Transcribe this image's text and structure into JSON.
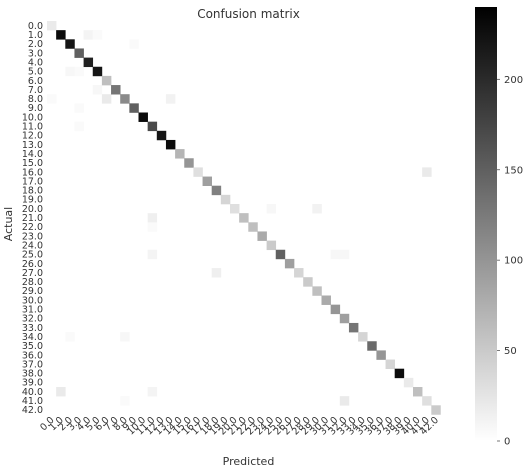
{
  "chart_data": {
    "type": "heatmap",
    "title": "Confusion matrix",
    "xlabel": "Predicted",
    "ylabel": "Actual",
    "colormap": "Greys",
    "colormap_endpoints": [
      "#ffffff",
      "#000000"
    ],
    "vmin": 0,
    "vmax": 240,
    "colorbar_ticks": [
      0,
      50,
      100,
      150,
      200
    ],
    "x_tick_labels": [
      "0.0",
      "1.0",
      "2.0",
      "3.0",
      "4.0",
      "5.0",
      "6.0",
      "7.0",
      "8.0",
      "9.0",
      "10.0",
      "11.0",
      "12.0",
      "13.0",
      "14.0",
      "15.0",
      "16.0",
      "17.0",
      "18.0",
      "19.0",
      "20.0",
      "21.0",
      "22.0",
      "23.0",
      "24.0",
      "25.0",
      "26.0",
      "27.0",
      "28.0",
      "29.0",
      "30.0",
      "31.0",
      "32.0",
      "33.0",
      "34.0",
      "35.0",
      "36.0",
      "37.0",
      "38.0",
      "39.0",
      "40.0",
      "41.0",
      "42.0"
    ],
    "y_tick_labels": [
      "0.0",
      "1.0",
      "2.0",
      "3.0",
      "4.0",
      "5.0",
      "6.0",
      "7.0",
      "8.0",
      "9.0",
      "10.0",
      "11.0",
      "12.0",
      "13.0",
      "14.0",
      "15.0",
      "16.0",
      "17.0",
      "18.0",
      "19.0",
      "20.0",
      "21.0",
      "22.0",
      "23.0",
      "24.0",
      "25.0",
      "26.0",
      "27.0",
      "28.0",
      "29.0",
      "30.0",
      "31.0",
      "32.0",
      "33.0",
      "34.0",
      "35.0",
      "36.0",
      "37.0",
      "38.0",
      "39.0",
      "40.0",
      "41.0",
      "42.0"
    ],
    "diagonal": [
      20,
      230,
      220,
      150,
      210,
      220,
      60,
      130,
      110,
      150,
      230,
      170,
      220,
      230,
      70,
      100,
      30,
      90,
      120,
      40,
      30,
      60,
      60,
      80,
      50,
      150,
      90,
      40,
      50,
      60,
      80,
      100,
      90,
      130,
      40,
      140,
      100,
      40,
      230,
      20,
      60,
      30,
      50
    ],
    "off_diagonal": [
      {
        "actual": 1,
        "predicted": 4,
        "value": 10
      },
      {
        "actual": 1,
        "predicted": 5,
        "value": 5
      },
      {
        "actual": 2,
        "predicted": 9,
        "value": 5
      },
      {
        "actual": 5,
        "predicted": 2,
        "value": 8
      },
      {
        "actual": 5,
        "predicted": 3,
        "value": 5
      },
      {
        "actual": 7,
        "predicted": 5,
        "value": 8
      },
      {
        "actual": 8,
        "predicted": 6,
        "value": 20
      },
      {
        "actual": 8,
        "predicted": 0,
        "value": 5
      },
      {
        "actual": 8,
        "predicted": 13,
        "value": 12
      },
      {
        "actual": 9,
        "predicted": 3,
        "value": 5
      },
      {
        "actual": 11,
        "predicted": 3,
        "value": 5
      },
      {
        "actual": 16,
        "predicted": 41,
        "value": 20
      },
      {
        "actual": 20,
        "predicted": 24,
        "value": 8
      },
      {
        "actual": 20,
        "predicted": 29,
        "value": 12
      },
      {
        "actual": 21,
        "predicted": 11,
        "value": 15
      },
      {
        "actual": 22,
        "predicted": 11,
        "value": 5
      },
      {
        "actual": 25,
        "predicted": 11,
        "value": 10
      },
      {
        "actual": 25,
        "predicted": 31,
        "value": 8
      },
      {
        "actual": 25,
        "predicted": 32,
        "value": 8
      },
      {
        "actual": 27,
        "predicted": 18,
        "value": 15
      },
      {
        "actual": 34,
        "predicted": 2,
        "value": 5
      },
      {
        "actual": 34,
        "predicted": 8,
        "value": 8
      },
      {
        "actual": 40,
        "predicted": 1,
        "value": 20
      },
      {
        "actual": 40,
        "predicted": 11,
        "value": 10
      },
      {
        "actual": 41,
        "predicted": 32,
        "value": 20
      },
      {
        "actual": 41,
        "predicted": 8,
        "value": 5
      }
    ]
  }
}
